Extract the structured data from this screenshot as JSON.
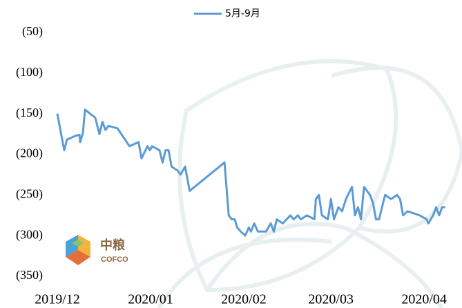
{
  "chart_data": {
    "type": "line",
    "x": [
      0,
      2.3,
      3.2,
      6.2,
      7.4,
      7.6,
      8.5,
      9.2,
      12.6,
      14,
      15,
      16,
      17,
      20,
      24,
      27,
      28,
      30,
      30.8,
      31.5,
      34,
      35,
      36,
      37,
      38,
      40,
      41,
      42.5,
      44,
      55.6,
      57,
      58,
      59,
      59.8,
      61,
      62.5,
      63.7,
      64.4,
      65.5,
      66.7,
      69.4,
      71,
      72,
      73,
      75,
      77.5,
      78.6,
      80,
      81,
      83,
      85.5,
      86,
      87,
      88,
      90,
      91,
      92,
      93.5,
      94.7,
      96,
      98,
      99,
      100,
      101,
      102,
      104,
      105,
      106,
      107,
      108,
      109,
      111,
      113,
      114,
      115,
      116.5,
      120.5,
      122.8,
      123.4,
      125,
      126,
      127,
      128,
      129
    ],
    "series": [
      {
        "name": "5月-9月",
        "color": "#5b9bd5",
        "values": [
          -150,
          -195,
          -182,
          -177,
          -176,
          -185,
          -174,
          -145,
          -155,
          -175,
          -160,
          -170,
          -165,
          -168,
          -190,
          -185,
          -205,
          -190,
          -195,
          -190,
          -195,
          -210,
          -195,
          -195,
          -215,
          -220,
          -225,
          -215,
          -245,
          -210,
          -275,
          -280,
          -280,
          -290,
          -295,
          -300,
          -290,
          -295,
          -285,
          -295,
          -295,
          -285,
          -295,
          -280,
          -285,
          -275,
          -280,
          -275,
          -280,
          -275,
          -280,
          -255,
          -250,
          -275,
          -280,
          -255,
          -280,
          -265,
          -270,
          -255,
          -240,
          -275,
          -265,
          -280,
          -240,
          -250,
          -260,
          -280,
          -280,
          -265,
          -250,
          -255,
          -250,
          -255,
          -275,
          -270,
          -275,
          -280,
          -285,
          -275,
          -265,
          -275,
          -265,
          -265
        ]
      }
    ],
    "xlim": [
      0,
      130
    ],
    "xticks": [
      {
        "value": 0,
        "label": "2019/12"
      },
      {
        "value": 31,
        "label": "2020/01"
      },
      {
        "value": 62,
        "label": "2020/02"
      },
      {
        "value": 91,
        "label": "2020/03"
      },
      {
        "value": 122,
        "label": "2020/04"
      }
    ],
    "ylim": [
      -350,
      -50
    ],
    "yticks": [
      {
        "value": -50,
        "label": "(50)"
      },
      {
        "value": -100,
        "label": "(100)"
      },
      {
        "value": -150,
        "label": "(150)"
      },
      {
        "value": -200,
        "label": "(200)"
      },
      {
        "value": -250,
        "label": "(250)"
      },
      {
        "value": -300,
        "label": "(300)"
      },
      {
        "value": -350,
        "label": "(350)"
      }
    ],
    "grid": false,
    "legend": "top",
    "watermark": {
      "cn": "中粮",
      "en": "COFCO"
    }
  }
}
